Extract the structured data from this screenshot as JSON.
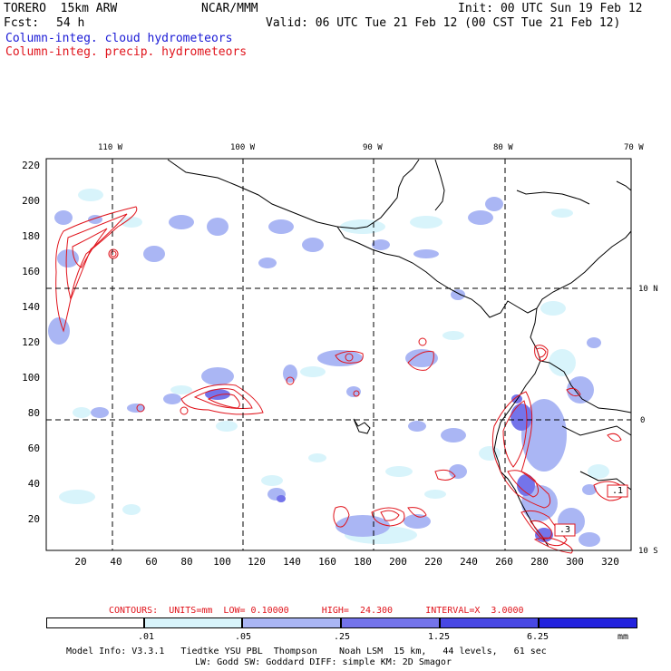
{
  "header": {
    "model": "TORERO  15km ARW",
    "org": "NCAR/MMM",
    "init": "Init: 00 UTC Sun 19 Feb 12",
    "fcst_label": "Fcst:",
    "fcst_value": "54 h",
    "valid": "Valid: 06 UTC Tue 21 Feb 12 (00 CST Tue 21 Feb 12)",
    "field1": "Column-integ. cloud hydrometeors",
    "field2": "Column-integ. precip. hydrometeors"
  },
  "map": {
    "lon_labels": [
      "110 W",
      "100 W",
      "90 W",
      "80 W",
      "70 W"
    ],
    "lat_labels": [
      "10 N",
      "0",
      "10 S"
    ],
    "y_ticks": [
      "220",
      "200",
      "180",
      "160",
      "140",
      "120",
      "100",
      "80",
      "60",
      "40",
      "20"
    ],
    "x_ticks": [
      "20",
      "40",
      "60",
      "80",
      "100",
      "120",
      "140",
      "160",
      "180",
      "200",
      "220",
      "240",
      "260",
      "280",
      "300",
      "320"
    ],
    "boxed_labels": [
      ".1",
      ".3"
    ],
    "colors": {
      "contour": "#e0141c",
      "shade1": "#d8f4fb",
      "shade2": "#aab6f4",
      "shade3": "#7474ea",
      "coast": "#000000"
    }
  },
  "contours": {
    "text": "CONTOURS:  UNITS=mm  LOW= 0.10000      HIGH=  24.300      INTERVAL=X  3.0000"
  },
  "colorbar": {
    "levels": [
      ".01",
      ".05",
      ".25",
      "1.25",
      "6.25"
    ],
    "unit": "mm",
    "colors": [
      "#ffffff",
      "#d8f4fb",
      "#aab6f4",
      "#7474ea",
      "#4848e4",
      "#2222dd"
    ]
  },
  "footer": {
    "line1": "Model Info: V3.3.1   Tiedtke YSU PBL  Thompson    Noah LSM  15 km,   44 levels,   61 sec",
    "line2": "LW: Godd SW: Goddard DIFF: simple KM: 2D Smagor"
  }
}
